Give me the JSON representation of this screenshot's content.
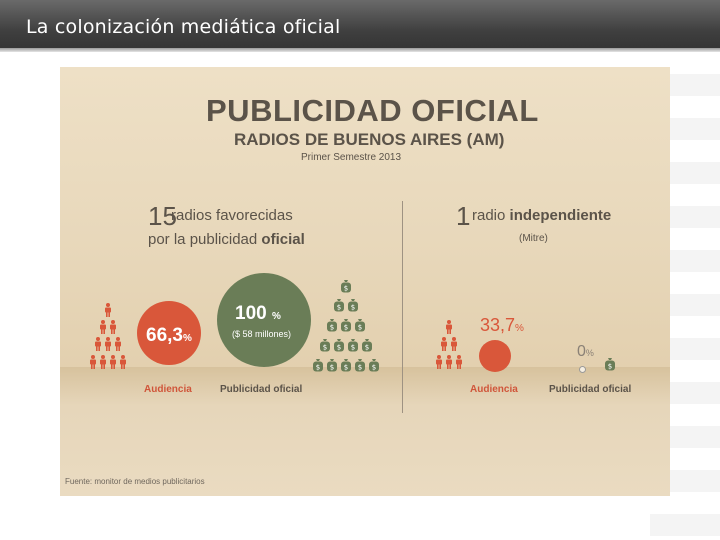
{
  "slide": {
    "title": "La colonización mediática oficial"
  },
  "infographic": {
    "title": "PUBLICIDAD OFICIAL",
    "subtitle": "RADIOS DE BUENOS AIRES (AM)",
    "period": "Primer Semestre 2013",
    "left": {
      "count": "15",
      "line1": "radios favorecidas",
      "line2_plain": "por la publicidad ",
      "line2_bold": "oficial",
      "audience_pct": "66,3",
      "audience_unit": "%",
      "ad_pct": "100",
      "ad_unit": "%",
      "ad_amount": "($ 58 millones)",
      "audience_label": "Audiencia",
      "ad_label": "Publicidad oficial"
    },
    "right": {
      "count": "1",
      "line1_plain": "radio ",
      "line1_bold": "independiente",
      "sub": "(Mitre)",
      "audience_pct": "33,7",
      "audience_unit": "%",
      "ad_pct": "0",
      "ad_unit": "%",
      "audience_label": "Audiencia",
      "ad_label": "Publicidad oficial"
    },
    "source": "Fuente: monitor de medios publicitarios",
    "colors": {
      "red": "#d9573a",
      "green": "#6a7d57",
      "text": "#5b5349",
      "background": "#e8d8bb"
    },
    "icons": {
      "person": "person-icon",
      "money_bag": "money-bag-icon"
    }
  }
}
